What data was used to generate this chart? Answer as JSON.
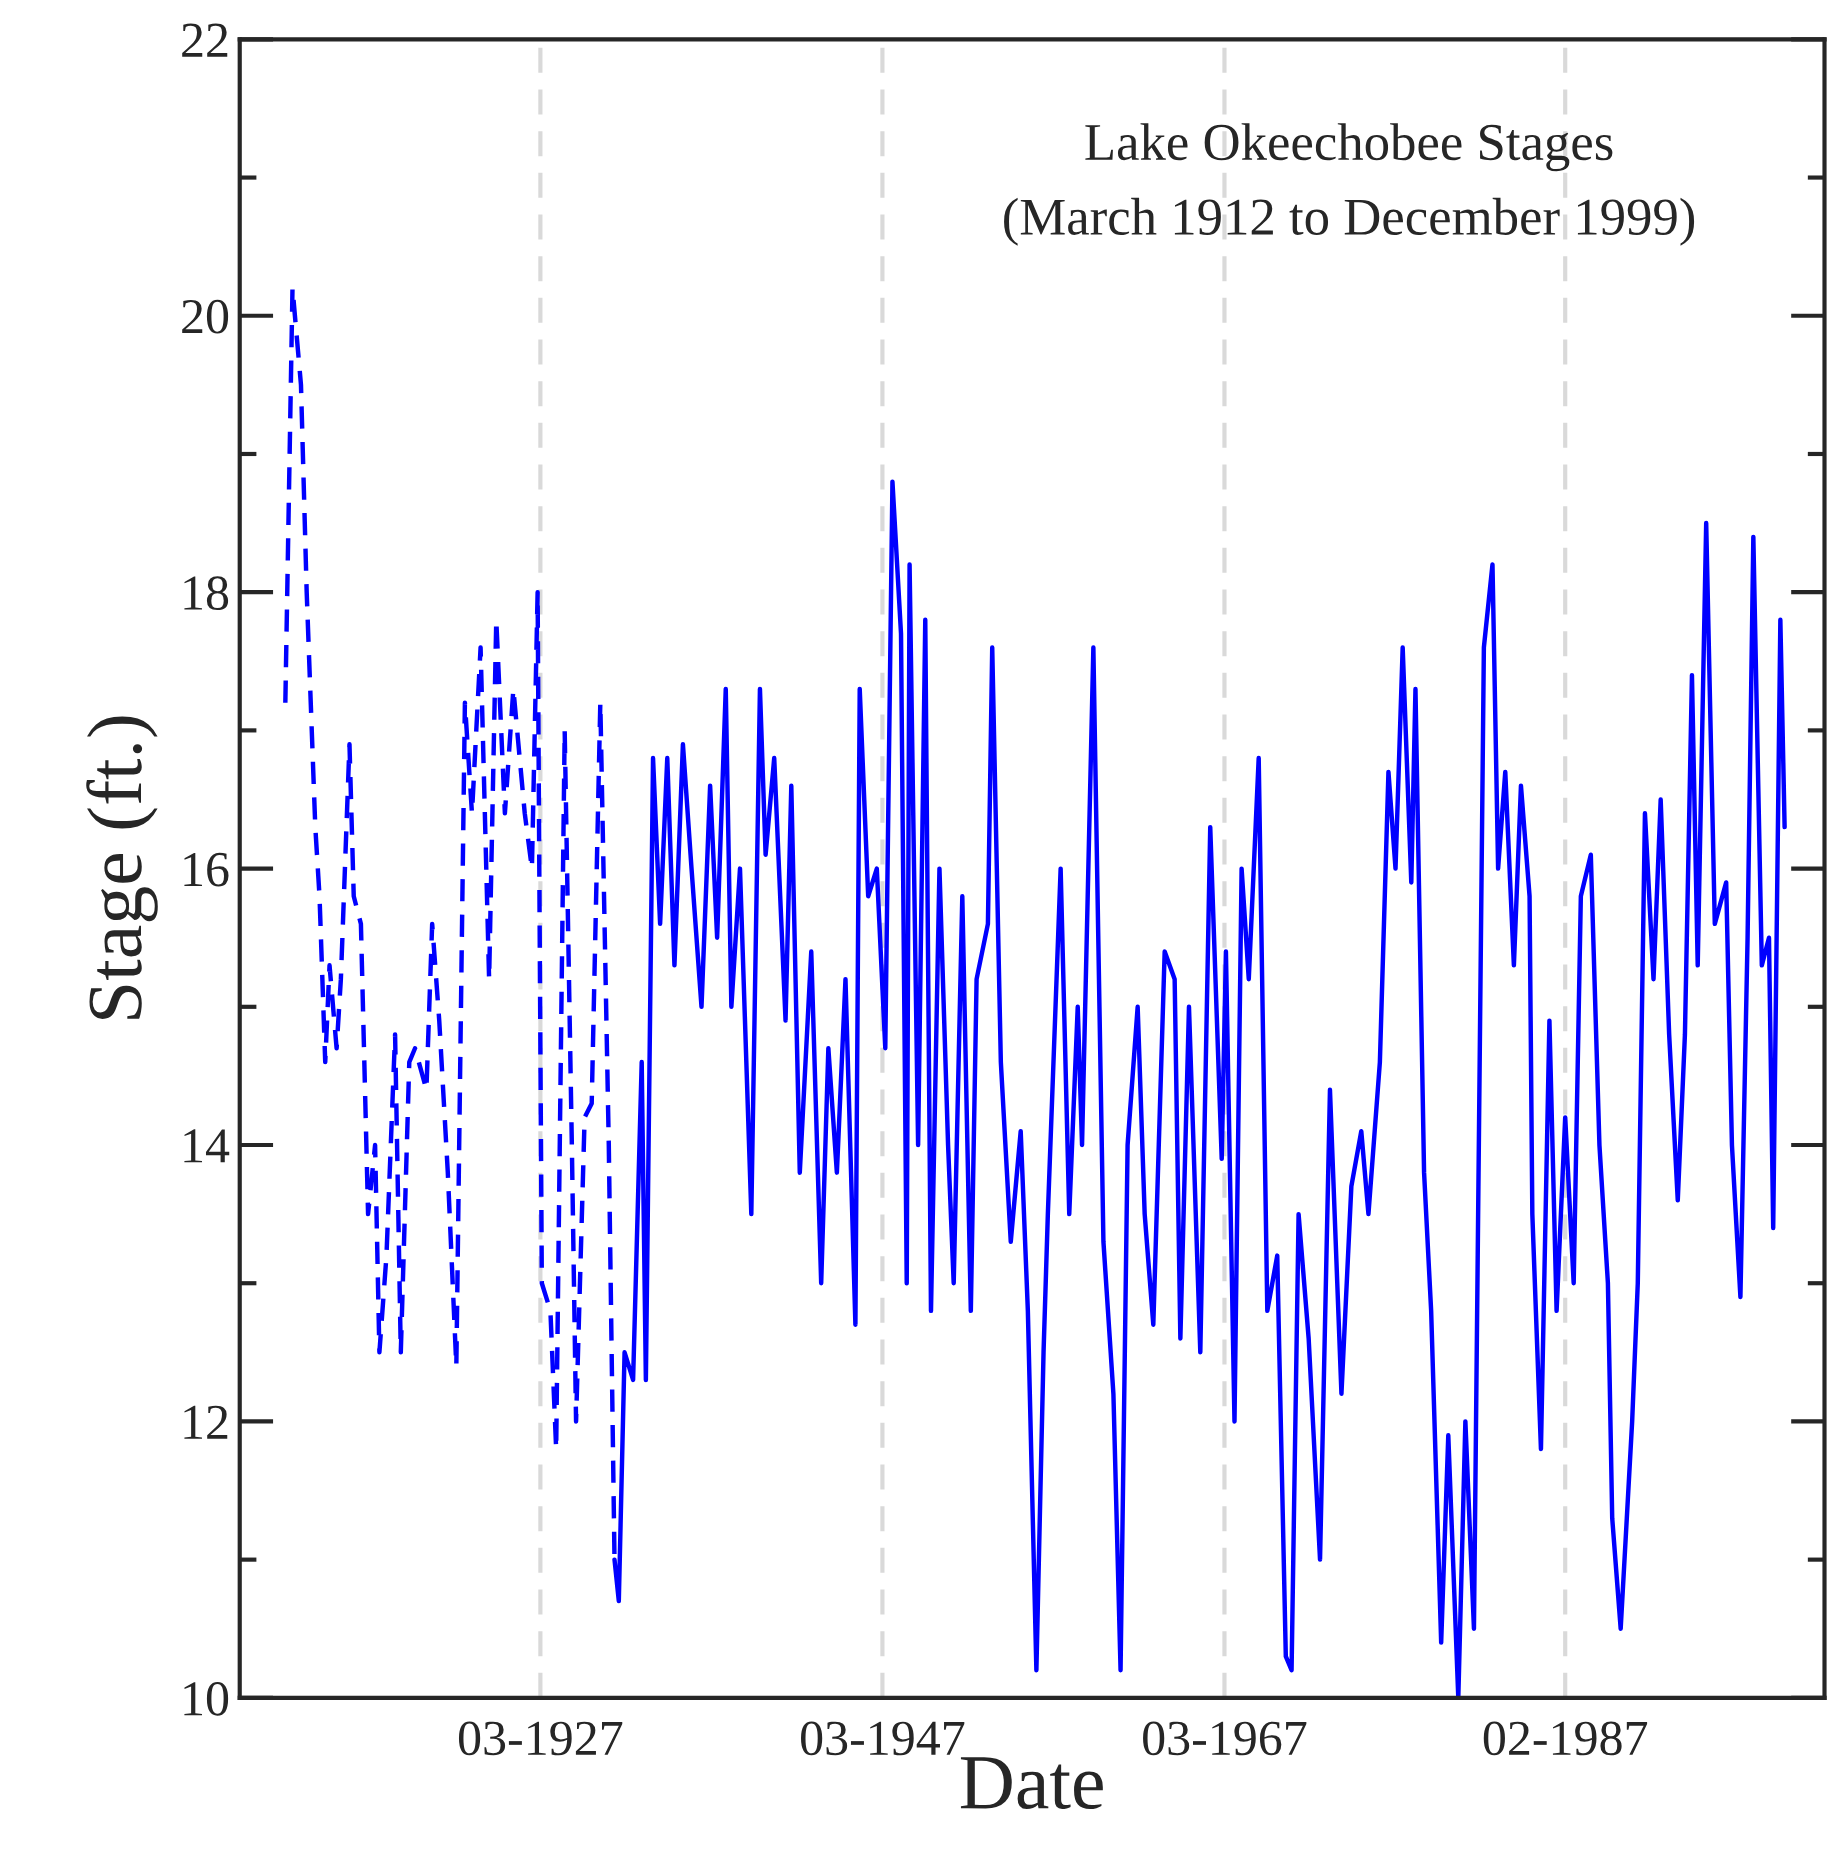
{
  "chart_data": {
    "type": "line",
    "title": "Lake Okeechobee Stages",
    "subtitle": "(March 1912 to December 1999)",
    "xlabel": "Date",
    "ylabel": "Stage (ft.)",
    "xlim": [
      "1909-08",
      "2002-04"
    ],
    "ylim": [
      10,
      22
    ],
    "xticks": [
      {
        "value": "1927-03",
        "label": "03-1927"
      },
      {
        "value": "1947-03",
        "label": "03-1947"
      },
      {
        "value": "1967-03",
        "label": "03-1967"
      },
      {
        "value": "1987-02",
        "label": "02-1987"
      }
    ],
    "yticks": [
      10,
      {
        "value": 11,
        "label": null
      },
      12,
      {
        "value": 13,
        "label": null
      },
      14,
      {
        "value": 15,
        "label": null
      },
      16,
      {
        "value": 17,
        "label": null
      },
      18,
      {
        "value": 19,
        "label": null
      },
      20,
      {
        "value": 21,
        "label": null
      },
      22
    ],
    "grid": "x",
    "legend": false,
    "series": [
      {
        "color": "#0000ff",
        "line_style": "dashed",
        "x": [
          "1912-04",
          "1912-09",
          "1913-03",
          "1913-07",
          "1914-01",
          "1914-04",
          "1914-08",
          "1914-11",
          "1915-04",
          "1915-07",
          "1916-01",
          "1916-04",
          "1916-09",
          "1917-02",
          "1917-07",
          "1917-10",
          "1918-03",
          "1918-09",
          "1919-01",
          "1919-07",
          "1919-11",
          "1920-07",
          "1920-11",
          "1921-04",
          "1921-10",
          "1922-04",
          "1922-10",
          "1923-03",
          "1923-09",
          "1924-03",
          "1924-08",
          "1925-02",
          "1925-08",
          "1926-04",
          "1926-09",
          "1927-01",
          "1927-04",
          "1927-10",
          "1928-02",
          "1928-08",
          "1929-01",
          "1929-04",
          "1929-10",
          "1930-03",
          "1930-09",
          "1931-03",
          "1931-07"
        ],
        "values": [
          17.2,
          20.2,
          19.5,
          18.0,
          16.3,
          15.8,
          14.6,
          15.3,
          14.7,
          15.2,
          16.9,
          15.8,
          15.6,
          13.5,
          14.0,
          12.5,
          13.2,
          14.8,
          12.5,
          14.6,
          14.7,
          14.4,
          15.6,
          14.9,
          13.8,
          12.4,
          17.2,
          16.4,
          17.6,
          15.2,
          17.8,
          16.4,
          17.3,
          16.4,
          16.0,
          18.0,
          13.0,
          12.8,
          11.8,
          17.0,
          14.0,
          12.0,
          14.2,
          14.3,
          17.2,
          14.0,
          11.0
        ]
      },
      {
        "color": "#0000ff",
        "line_style": "solid",
        "x": [
          "1931-07",
          "1931-10",
          "1932-02",
          "1932-08",
          "1933-02",
          "1933-05",
          "1933-10",
          "1934-03",
          "1934-08",
          "1935-01",
          "1935-07",
          "1936-01",
          "1936-08",
          "1937-02",
          "1937-07",
          "1938-01",
          "1938-05",
          "1938-11",
          "1939-07",
          "1940-01",
          "1940-05",
          "1940-11",
          "1941-07",
          "1941-11",
          "1942-05",
          "1943-01",
          "1943-08",
          "1944-01",
          "1944-07",
          "1945-01",
          "1945-08",
          "1945-11",
          "1946-05",
          "1946-11",
          "1947-05",
          "1947-10",
          "1948-04",
          "1948-08",
          "1948-10",
          "1949-04",
          "1949-09",
          "1950-01",
          "1950-07",
          "1951-01",
          "1951-05",
          "1951-11",
          "1952-05",
          "1952-09",
          "1953-05",
          "1953-08",
          "1954-02",
          "1954-09",
          "1955-04",
          "1955-09",
          "1956-03",
          "1956-08",
          "1956-11",
          "1957-08",
          "1958-02",
          "1958-08",
          "1958-11",
          "1959-07",
          "1960-02",
          "1960-09",
          "1961-02",
          "1961-07",
          "1962-02",
          "1962-07",
          "1963-01",
          "1963-09",
          "1964-04",
          "1964-08",
          "1965-02",
          "1965-10",
          "1966-05",
          "1967-01",
          "1967-04",
          "1967-10",
          "1968-03",
          "1968-08",
          "1969-03",
          "1969-09",
          "1970-04",
          "1970-10",
          "1971-02",
          "1971-07",
          "1972-02",
          "1972-10",
          "1973-05",
          "1974-01",
          "1974-08",
          "1975-03",
          "1975-08",
          "1976-04",
          "1976-10",
          "1977-03",
          "1977-08",
          "1978-02",
          "1978-05",
          "1978-11",
          "1979-04",
          "1979-11",
          "1980-04",
          "1980-11",
          "1981-04",
          "1981-10",
          "1982-05",
          "1982-11",
          "1983-03",
          "1983-08",
          "1984-02",
          "1984-07",
          "1985-01",
          "1985-03",
          "1985-09",
          "1986-03",
          "1986-08",
          "1987-02",
          "1987-08",
          "1988-01",
          "1988-08",
          "1989-02",
          "1989-08",
          "1989-11",
          "1990-05",
          "1991-01",
          "1991-05",
          "1991-10",
          "1992-04",
          "1992-09",
          "1993-03",
          "1993-09",
          "1994-02",
          "1994-07",
          "1994-11",
          "1995-05",
          "1995-11",
          "1996-07",
          "1996-11",
          "1997-05",
          "1997-10",
          "1998-02",
          "1998-08",
          "1999-01",
          "1999-04",
          "1999-09",
          "1999-12"
        ],
        "values": [
          11.0,
          10.7,
          12.5,
          12.3,
          14.6,
          12.3,
          16.8,
          15.6,
          16.8,
          15.3,
          16.9,
          16.0,
          15.0,
          16.6,
          15.5,
          17.3,
          15.0,
          16.0,
          13.5,
          17.3,
          16.1,
          16.8,
          14.9,
          16.6,
          13.8,
          15.4,
          13.0,
          14.7,
          13.8,
          15.2,
          12.7,
          17.3,
          15.8,
          16.0,
          14.7,
          18.8,
          17.7,
          13.0,
          18.2,
          14.0,
          17.8,
          12.8,
          16.0,
          14.0,
          13.0,
          15.8,
          12.8,
          15.2,
          15.6,
          17.6,
          14.6,
          13.3,
          14.1,
          12.8,
          10.2,
          12.5,
          13.5,
          16.0,
          13.5,
          15.0,
          14.0,
          17.6,
          13.3,
          12.2,
          10.2,
          14.0,
          15.0,
          13.5,
          12.7,
          15.4,
          15.2,
          12.6,
          15.0,
          12.5,
          16.3,
          13.9,
          15.4,
          12.0,
          16.0,
          15.2,
          16.8,
          12.8,
          13.2,
          10.3,
          10.2,
          13.5,
          12.6,
          11.0,
          14.4,
          12.2,
          13.7,
          14.1,
          13.5,
          14.6,
          16.7,
          16.0,
          17.6,
          15.9,
          17.3,
          13.8,
          12.8,
          10.4,
          11.9,
          10.0,
          12.0,
          10.5,
          17.6,
          18.2,
          16.0,
          16.7,
          15.3,
          16.6,
          15.8,
          13.5,
          11.8,
          14.9,
          12.8,
          14.2,
          13.0,
          15.8,
          16.1,
          14.0,
          13.0,
          11.3,
          10.5,
          12.0,
          13.0,
          16.4,
          15.2,
          16.5,
          14.8,
          13.6,
          14.8,
          17.4,
          15.3,
          18.5,
          15.6,
          15.9,
          14.0,
          12.9,
          15.5,
          18.4,
          15.3,
          15.5,
          13.4,
          17.8,
          16.3
        ]
      }
    ]
  }
}
